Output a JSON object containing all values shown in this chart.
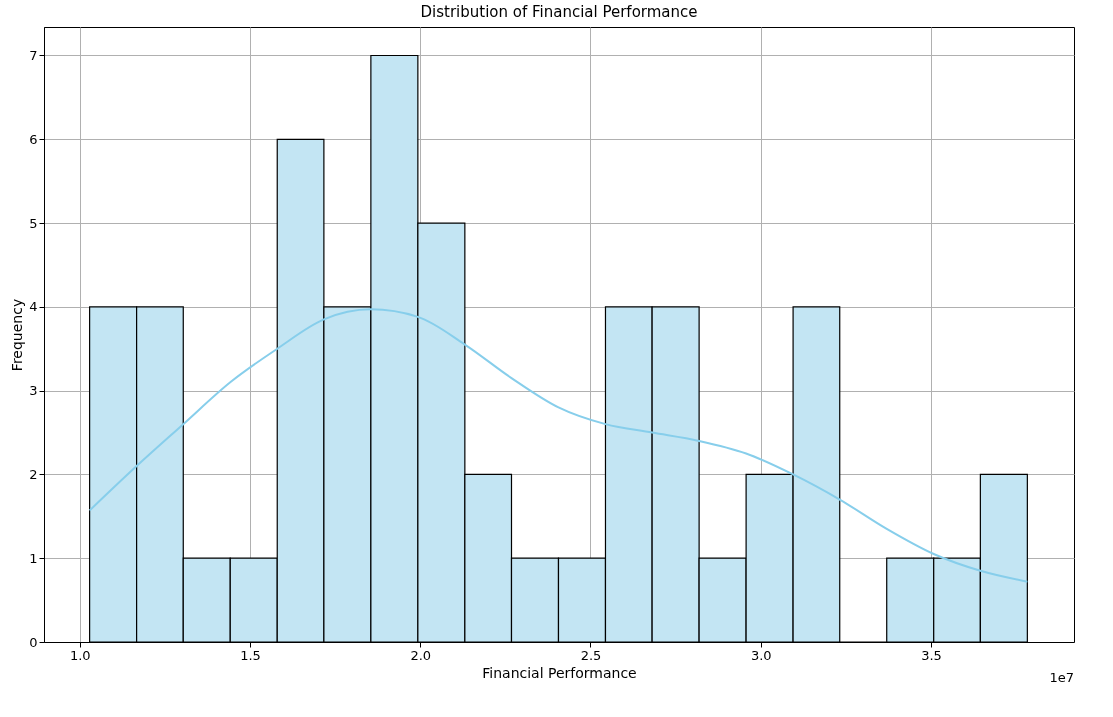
{
  "chart_data": {
    "type": "histogram",
    "title": "Distribution of Financial Performance",
    "xlabel": "Financial Performance",
    "ylabel": "Frequency",
    "bins": [
      1.029,
      1.167,
      1.304,
      1.442,
      1.58,
      1.717,
      1.855,
      1.993,
      2.131,
      2.268,
      2.406,
      2.544,
      2.681,
      2.819,
      2.957,
      3.095,
      3.232,
      3.37,
      3.508,
      3.645,
      3.783
    ],
    "values": [
      4,
      4,
      1,
      1,
      6,
      4,
      7,
      5,
      2,
      1,
      1,
      4,
      4,
      1,
      2,
      4,
      0,
      1,
      1,
      2
    ],
    "color": "#c3e5f3",
    "series": [
      {
        "type": "line",
        "color": "#87ceeb",
        "x": [
          1.029,
          1.167,
          1.304,
          1.442,
          1.58,
          1.717,
          1.855,
          1.993,
          2.131,
          2.268,
          2.406,
          2.544,
          2.681,
          2.819,
          2.957,
          3.095,
          3.232,
          3.37,
          3.508,
          3.645,
          3.783
        ],
        "values": [
          1.57,
          2.1,
          2.6,
          3.1,
          3.5,
          3.85,
          3.97,
          3.88,
          3.55,
          3.15,
          2.8,
          2.6,
          2.5,
          2.4,
          2.25,
          2.0,
          1.7,
          1.35,
          1.05,
          0.85,
          0.72
        ]
      }
    ],
    "xlim": [
      0.895,
      3.92
    ],
    "ylim": [
      0,
      7.34
    ],
    "xticks": [
      {
        "value": 1,
        "label": "1.0"
      },
      1.5,
      {
        "value": 2,
        "label": "2.0"
      },
      2.5,
      {
        "value": 3,
        "label": "3.0"
      },
      3.5
    ],
    "yticks": [
      0,
      1,
      2,
      3,
      4,
      5,
      6,
      7
    ],
    "grid": true,
    "annotations": [
      "1e7"
    ]
  }
}
